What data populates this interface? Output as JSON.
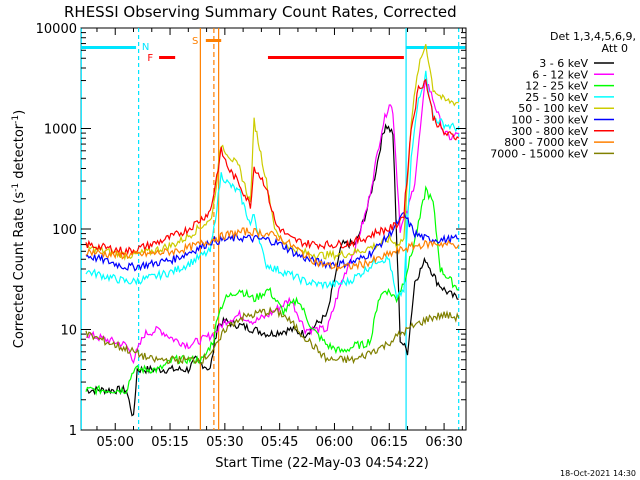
{
  "chart_data": {
    "type": "line",
    "title": "RHESSI Observing Summary Count Rates, Corrected",
    "xlabel": "Start Time (22-May-03 04:54:22)",
    "ylabel_main": "Corrected Count Rate (s",
    "ylabel_sup1": "-1",
    "ylabel_mid": " detector",
    "ylabel_sup2": "-1",
    "ylabel_end": ")",
    "yscale": "log",
    "ylim": [
      1,
      10000
    ],
    "xlim_minutes": [
      -9.37,
      96.0
    ],
    "x_ticks": [
      "05:00",
      "05:15",
      "05:30",
      "05:45",
      "06:00",
      "06:15",
      "06:30"
    ],
    "y_ticks": [
      "1",
      "10",
      "100",
      "1000",
      "10000"
    ],
    "detectors": "Det 1,3,4,5,6,9,",
    "attenuator": "Att 0",
    "legend_position": "top-right, outside plot",
    "flags": [
      {
        "label": "N",
        "color": "#00e5ff"
      },
      {
        "label": "F",
        "color": "#ff0000"
      },
      {
        "label": "S",
        "color": "#ff8000"
      }
    ],
    "series": [
      {
        "name": "3 - 6 keV",
        "color": "#000000",
        "x": [
          -8,
          3,
          5,
          6,
          12,
          20,
          22,
          26,
          28,
          30,
          34,
          38,
          42,
          48,
          52,
          58,
          62,
          66,
          69,
          71,
          73,
          74,
          76,
          78,
          80,
          82,
          85,
          88,
          90,
          92,
          94
        ],
        "y": [
          2.5,
          2.5,
          1.3,
          4,
          4,
          4,
          5,
          4,
          11,
          12,
          11,
          10,
          9,
          10,
          9,
          14,
          70,
          72,
          160,
          330,
          800,
          1100,
          900,
          8,
          6,
          30,
          50,
          30,
          25,
          22,
          20
        ]
      },
      {
        "name": "6 - 12 keV",
        "color": "#ff00ff",
        "x": [
          -8,
          3,
          5,
          8,
          12,
          16,
          20,
          24,
          27,
          30,
          34,
          38,
          42,
          48,
          52,
          58,
          62,
          66,
          69,
          71,
          73,
          75,
          76,
          78,
          80,
          82,
          85,
          88,
          90,
          92,
          94
        ],
        "y": [
          9,
          7,
          5,
          9,
          10,
          8,
          7,
          8,
          9,
          12,
          14,
          12,
          14,
          20,
          10,
          10,
          30,
          70,
          165,
          400,
          1000,
          1800,
          1500,
          100,
          150,
          300,
          3200,
          1500,
          900,
          800,
          900
        ]
      },
      {
        "name": "12 - 25 keV",
        "color": "#00ff00",
        "x": [
          -8,
          3,
          5,
          8,
          12,
          16,
          20,
          24,
          27,
          28,
          30,
          34,
          38,
          42,
          46,
          50,
          54,
          58,
          62,
          66,
          68,
          70,
          72,
          74,
          76,
          77,
          79,
          81,
          83,
          85,
          87,
          89,
          92,
          94
        ],
        "y": [
          2.5,
          2.5,
          4,
          4,
          4,
          5,
          5,
          5,
          8,
          14,
          20,
          25,
          20,
          25,
          15,
          20,
          10,
          7,
          6,
          7,
          7,
          8,
          20,
          25,
          22,
          20,
          30,
          55,
          110,
          250,
          180,
          40,
          30,
          25
        ]
      },
      {
        "name": "25 - 50 keV",
        "color": "#00ffff",
        "x": [
          -8,
          3,
          5,
          10,
          16,
          20,
          24,
          26,
          27,
          29,
          31,
          34,
          37,
          38,
          41,
          44,
          48,
          52,
          56,
          60,
          64,
          68,
          72,
          75,
          77,
          79,
          81,
          83,
          85,
          87,
          90,
          94
        ],
        "y": [
          38,
          30,
          30,
          33,
          38,
          45,
          55,
          60,
          100,
          350,
          280,
          230,
          110,
          140,
          45,
          40,
          35,
          30,
          28,
          28,
          30,
          38,
          50,
          50,
          20,
          25,
          500,
          2000,
          3500,
          1300,
          1100,
          1000
        ]
      },
      {
        "name": "50 - 100 keV",
        "color": "#cccc00",
        "x": [
          -8,
          3,
          5,
          10,
          16,
          20,
          24,
          26,
          27,
          29,
          31,
          34,
          37,
          38,
          41,
          44,
          48,
          52,
          56,
          60,
          64,
          68,
          72,
          75,
          77,
          79,
          81,
          83,
          85,
          87,
          90,
          94
        ],
        "y": [
          65,
          55,
          55,
          60,
          70,
          85,
          110,
          120,
          180,
          700,
          550,
          400,
          180,
          1200,
          350,
          90,
          65,
          58,
          55,
          55,
          57,
          62,
          70,
          80,
          70,
          80,
          1200,
          4000,
          7000,
          2500,
          1900,
          1800
        ]
      },
      {
        "name": "100 - 300 keV",
        "color": "#0000ff",
        "x": [
          -8,
          3,
          5,
          10,
          16,
          20,
          24,
          26,
          30,
          34,
          38,
          42,
          46,
          50,
          54,
          58,
          62,
          66,
          70,
          74,
          77,
          79,
          82,
          85,
          90,
          94
        ],
        "y": [
          55,
          42,
          42,
          45,
          50,
          58,
          68,
          75,
          78,
          82,
          80,
          78,
          68,
          55,
          48,
          45,
          45,
          48,
          58,
          80,
          110,
          140,
          90,
          80,
          78,
          80
        ]
      },
      {
        "name": "300 - 800 keV",
        "color": "#ff0000",
        "x": [
          -8,
          3,
          5,
          10,
          16,
          20,
          24,
          26,
          27,
          29,
          31,
          34,
          37,
          38,
          41,
          44,
          48,
          52,
          56,
          60,
          64,
          68,
          72,
          75,
          77,
          79,
          81,
          83,
          85,
          87,
          90,
          94
        ],
        "y": [
          70,
          60,
          62,
          70,
          85,
          100,
          130,
          150,
          230,
          600,
          400,
          280,
          170,
          420,
          280,
          110,
          80,
          72,
          70,
          70,
          72,
          80,
          95,
          100,
          110,
          140,
          1000,
          2500,
          3000,
          1300,
          900,
          800
        ]
      },
      {
        "name": "800 - 7000 keV",
        "color": "#ff8000",
        "x": [
          -8,
          0,
          5,
          10,
          16,
          20,
          24,
          28,
          32,
          36,
          40,
          44,
          48,
          52,
          56,
          60,
          64,
          68,
          72,
          76,
          80,
          84,
          88,
          92,
          94
        ],
        "y": [
          60,
          55,
          55,
          57,
          60,
          65,
          72,
          82,
          90,
          95,
          92,
          85,
          70,
          55,
          45,
          42,
          42,
          45,
          50,
          58,
          65,
          70,
          72,
          70,
          70
        ]
      },
      {
        "name": "7000 - 15000 keV",
        "color": "#808000",
        "x": [
          -8,
          0,
          5,
          10,
          16,
          20,
          24,
          28,
          30,
          34,
          38,
          40,
          44,
          46,
          50,
          54,
          58,
          62,
          66,
          70,
          74,
          78,
          82,
          86,
          90,
          94
        ],
        "y": [
          9,
          7,
          6,
          5,
          5,
          5,
          5,
          7,
          10,
          13,
          14,
          15,
          15,
          14,
          10,
          7,
          5,
          5,
          5,
          6,
          7,
          9,
          11,
          13,
          14,
          13
        ]
      }
    ]
  },
  "footer": {
    "timestamp": "18-Oct-2021 14:30"
  }
}
